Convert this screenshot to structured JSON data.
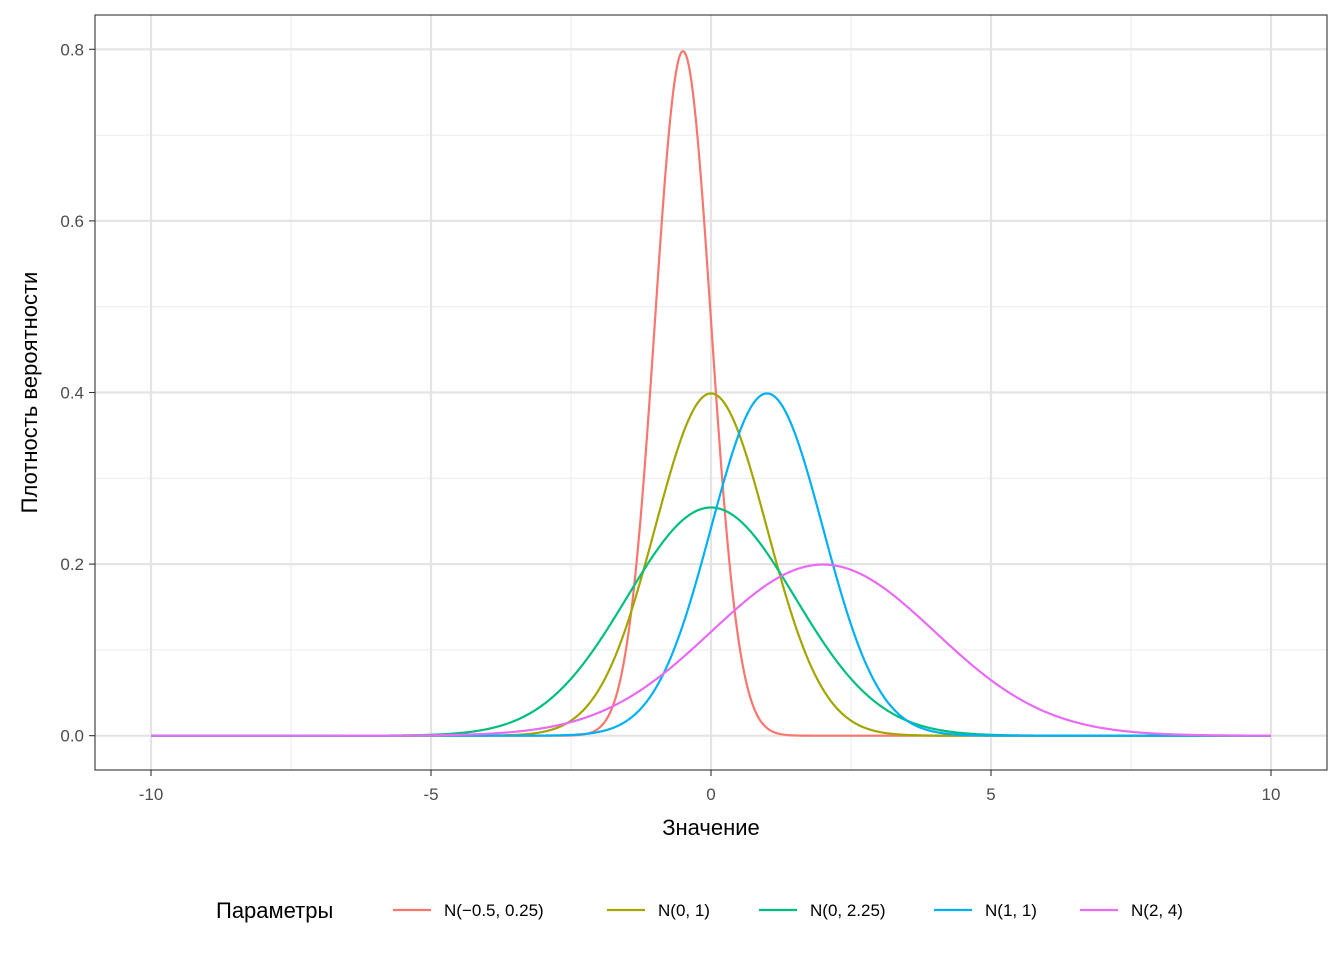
{
  "chart_data": {
    "type": "line",
    "title": "",
    "xlabel": "Значение",
    "ylabel": "Плотность вероятности",
    "xlim": [
      -11,
      11
    ],
    "ylim": [
      -0.04,
      0.84
    ],
    "x_ticks": [
      -10,
      -5,
      0,
      5,
      10
    ],
    "x_tick_labels": [
      "-10",
      "-5",
      "0",
      "5",
      "10"
    ],
    "y_ticks": [
      0.0,
      0.2,
      0.4,
      0.6,
      0.8
    ],
    "y_tick_labels": [
      "0.0",
      "0.2",
      "0.4",
      "0.6",
      "0.8"
    ],
    "grid": true,
    "x_range": [
      -10,
      10
    ],
    "legend": {
      "title": "Параметры",
      "position": "bottom"
    },
    "series": [
      {
        "name": "N(−0.5, 0.25)",
        "distribution": "normal",
        "mean": -0.5,
        "variance": 0.25,
        "color": "#F8766D"
      },
      {
        "name": "N(0, 1)",
        "distribution": "normal",
        "mean": 0,
        "variance": 1,
        "color": "#A3A500"
      },
      {
        "name": "N(0, 2.25)",
        "distribution": "normal",
        "mean": 0,
        "variance": 2.25,
        "color": "#00BF7D"
      },
      {
        "name": "N(1, 1)",
        "distribution": "normal",
        "mean": 1,
        "variance": 1,
        "color": "#00B0F6"
      },
      {
        "name": "N(2, 4)",
        "distribution": "normal",
        "mean": 2,
        "variance": 4,
        "color": "#E76BF3"
      }
    ]
  }
}
